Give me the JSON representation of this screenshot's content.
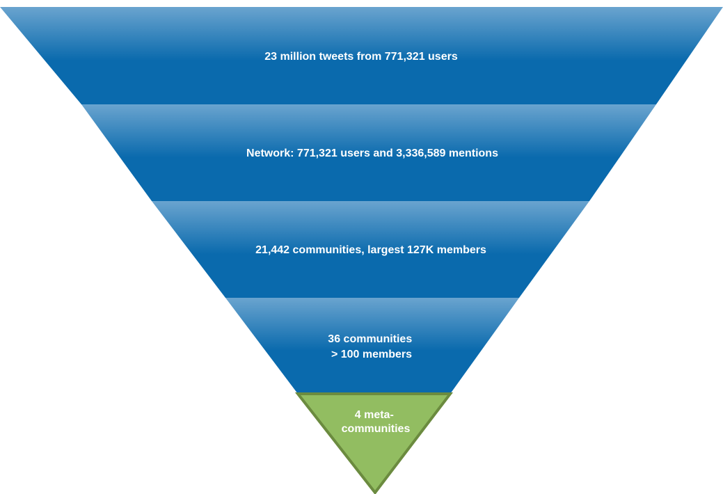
{
  "funnel": {
    "tiers": [
      {
        "lines": [
          "23 million tweets from 771,321 users"
        ]
      },
      {
        "lines": [
          "Network: 771,321 users and 3,336,589 mentions"
        ]
      },
      {
        "lines": [
          "21,442 communities, largest 127K members"
        ]
      },
      {
        "lines": [
          "36 communities",
          "> 100 members"
        ]
      }
    ],
    "tip": {
      "lines": [
        "4 meta-",
        "communities"
      ]
    }
  },
  "colors": {
    "tier_light": "#6aa4cf",
    "tier_dark": "#0a6aad",
    "tip_fill": "#92bd61",
    "tip_stroke": "#6b8b3f",
    "text": "#ffffff"
  }
}
